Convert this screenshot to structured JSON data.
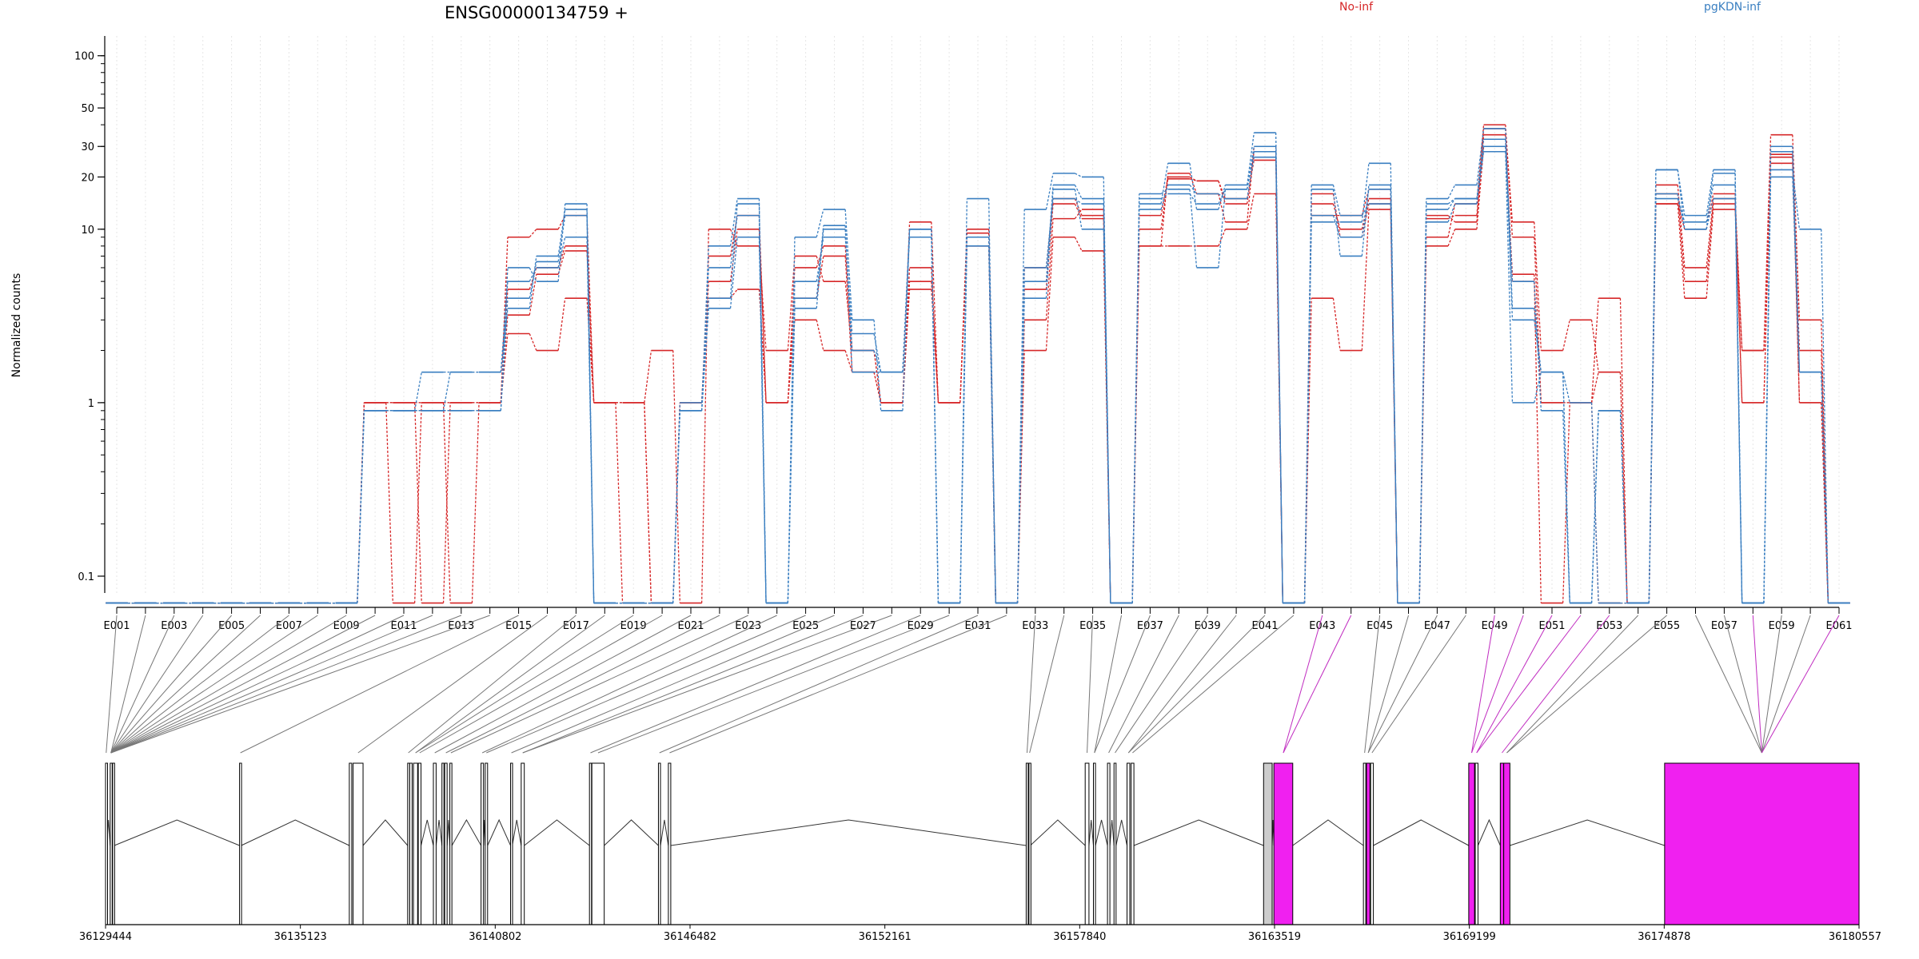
{
  "chart_data": {
    "type": "line",
    "title": "ENSG00000134759 +",
    "ylabel": "Normalized counts",
    "y_scale": "log",
    "ylim": [
      0.08,
      130
    ],
    "y_ticks": [
      0.1,
      1,
      10,
      20,
      30,
      50,
      100
    ],
    "y_tick_labels": [
      "0.1",
      "1",
      "10",
      "20",
      "30",
      "50",
      "100"
    ],
    "x_tick_labels": [
      "E001",
      "E003",
      "E005",
      "E007",
      "E009",
      "E011",
      "E013",
      "E015",
      "E017",
      "E019",
      "E021",
      "E023",
      "E025",
      "E027",
      "E029",
      "E031",
      "E033",
      "E035",
      "E037",
      "E039",
      "E041",
      "E043",
      "E045",
      "E047",
      "E049",
      "E051",
      "E053",
      "E055",
      "E057",
      "E059",
      "E061"
    ],
    "exons": [
      "E001",
      "E002",
      "E003",
      "E004",
      "E005",
      "E006",
      "E007",
      "E008",
      "E009",
      "E010",
      "E011",
      "E012",
      "E013",
      "E014",
      "E015",
      "E016",
      "E017",
      "E018",
      "E019",
      "E020",
      "E021",
      "E022",
      "E023",
      "E024",
      "E025",
      "E026",
      "E027",
      "E028",
      "E029",
      "E030",
      "E031",
      "E032",
      "E033",
      "E034",
      "E035",
      "E036",
      "E037",
      "E038",
      "E039",
      "E040",
      "E041",
      "E042",
      "E043",
      "E044",
      "E045",
      "E046",
      "E047",
      "E048",
      "E049",
      "E050",
      "E051",
      "E052",
      "E053",
      "E054",
      "E055",
      "E056",
      "E057",
      "E058",
      "E059",
      "E060",
      "E061"
    ],
    "legend": [
      {
        "name": "No-inf",
        "color": "#d62728",
        "position": "top"
      },
      {
        "name": "pgKDN-inf",
        "color": "#3a7fc1",
        "position": "top"
      }
    ],
    "series": [
      {
        "group": "No-inf",
        "color": "#d62728",
        "values": [
          0.07,
          0.07,
          0.07,
          0.07,
          0.07,
          0.07,
          0.07,
          0.07,
          0.07,
          1.0,
          1.0,
          1.0,
          1.0,
          1.0,
          3.2,
          5.5,
          7.5,
          1.0,
          0.07,
          0.07,
          1.0,
          5.0,
          10.0,
          1.0,
          4.0,
          7.0,
          1.5,
          1.0,
          5.0,
          1.0,
          9.0,
          0.07,
          4.5,
          14.0,
          11.5,
          0.07,
          10.0,
          19.5,
          19.0,
          14.0,
          28.0,
          0.07,
          14.0,
          10.0,
          15.0,
          0.07,
          11.5,
          12.0,
          35.0,
          5.0,
          1.0,
          1.0,
          1.5,
          0.07,
          16.0,
          5.0,
          14.0,
          1.0,
          26.0,
          1.0,
          0.07
        ]
      },
      {
        "group": "No-inf",
        "color": "#d62728",
        "values": [
          0.07,
          0.07,
          0.07,
          0.07,
          0.07,
          0.07,
          0.07,
          0.07,
          0.07,
          1.0,
          1.0,
          0.07,
          1.0,
          1.0,
          4.5,
          6.0,
          8.0,
          1.0,
          1.0,
          0.07,
          1.0,
          7.0,
          12.0,
          1.0,
          6.0,
          8.0,
          2.0,
          1.0,
          6.0,
          1.0,
          10.0,
          0.07,
          3.0,
          11.5,
          13.0,
          0.07,
          8.0,
          21.0,
          16.0,
          11.0,
          30.0,
          0.07,
          12.0,
          12.0,
          17.0,
          0.07,
          9.0,
          14.0,
          40.0,
          9.0,
          1.0,
          1.0,
          0.07,
          0.07,
          18.0,
          6.0,
          15.0,
          2.0,
          24.0,
          2.0,
          0.07
        ]
      },
      {
        "group": "No-inf",
        "color": "#d62728",
        "values": [
          0.07,
          0.07,
          0.07,
          0.07,
          0.07,
          0.07,
          0.07,
          0.07,
          0.07,
          1.0,
          0.07,
          1.0,
          0.07,
          1.0,
          9.0,
          10.0,
          12.0,
          1.0,
          1.0,
          2.0,
          0.07,
          10.0,
          8.0,
          2.0,
          7.0,
          5.0,
          2.0,
          1.0,
          11.0,
          1.0,
          8.0,
          0.07,
          6.0,
          15.0,
          12.0,
          0.07,
          12.0,
          20.0,
          19.0,
          15.0,
          25.0,
          0.07,
          16.0,
          9.0,
          14.0,
          0.07,
          12.0,
          11.0,
          38.0,
          11.0,
          2.0,
          3.0,
          1.5,
          0.07,
          14.0,
          10.0,
          16.0,
          1.0,
          27.0,
          1.0,
          0.07
        ]
      },
      {
        "group": "No-inf",
        "color": "#d62728",
        "values": [
          0.07,
          0.07,
          0.07,
          0.07,
          0.07,
          0.07,
          0.07,
          0.07,
          0.07,
          1.0,
          1.0,
          1.0,
          1.0,
          1.0,
          2.5,
          2.0,
          4.0,
          1.0,
          1.0,
          0.07,
          1.0,
          4.0,
          4.5,
          1.0,
          3.0,
          2.0,
          1.5,
          1.0,
          4.5,
          1.0,
          9.5,
          0.07,
          2.0,
          9.0,
          7.5,
          0.07,
          8.0,
          8.0,
          8.0,
          10.0,
          16.0,
          0.07,
          4.0,
          2.0,
          13.0,
          0.07,
          8.0,
          10.0,
          30.0,
          5.5,
          0.07,
          1.0,
          4.0,
          0.07,
          14.0,
          4.0,
          13.0,
          2.0,
          35.0,
          3.0,
          0.07
        ]
      },
      {
        "group": "pgKDN-inf",
        "color": "#3a7fc1",
        "values": [
          0.07,
          0.07,
          0.07,
          0.07,
          0.07,
          0.07,
          0.07,
          0.07,
          0.07,
          0.9,
          0.9,
          1.5,
          1.5,
          1.5,
          5.0,
          6.0,
          9.0,
          0.07,
          0.07,
          0.07,
          1.0,
          6.0,
          12.0,
          0.07,
          5.0,
          9.0,
          2.5,
          1.5,
          10.0,
          0.07,
          8.0,
          0.07,
          5.0,
          18.0,
          15.0,
          0.07,
          14.0,
          24.0,
          13.0,
          18.0,
          36.0,
          0.07,
          17.0,
          7.0,
          18.0,
          0.07,
          15.0,
          18.0,
          38.0,
          3.5,
          1.5,
          1.0,
          0.07,
          0.07,
          22.0,
          12.0,
          22.0,
          0.07,
          30.0,
          1.5,
          0.07
        ]
      },
      {
        "group": "pgKDN-inf",
        "color": "#3a7fc1",
        "values": [
          0.07,
          0.07,
          0.07,
          0.07,
          0.07,
          0.07,
          0.07,
          0.07,
          0.07,
          0.9,
          0.9,
          0.9,
          0.9,
          0.9,
          6.0,
          5.0,
          14.0,
          0.07,
          0.07,
          0.07,
          0.9,
          8.0,
          15.0,
          0.07,
          9.0,
          13.0,
          3.0,
          0.9,
          10.0,
          0.07,
          15.0,
          0.07,
          13.0,
          21.0,
          20.0,
          0.07,
          16.0,
          17.0,
          6.0,
          17.0,
          28.0,
          0.07,
          11.0,
          11.0,
          24.0,
          0.07,
          13.0,
          15.0,
          33.0,
          3.0,
          1.5,
          0.07,
          0.9,
          0.07,
          22.0,
          10.0,
          21.0,
          0.07,
          20.0,
          1.5,
          0.07
        ]
      },
      {
        "group": "pgKDN-inf",
        "color": "#3a7fc1",
        "values": [
          0.07,
          0.07,
          0.07,
          0.07,
          0.07,
          0.07,
          0.07,
          0.07,
          0.07,
          0.9,
          0.9,
          0.9,
          1.5,
          1.5,
          3.5,
          7.0,
          13.0,
          0.07,
          0.07,
          0.07,
          0.9,
          3.5,
          9.0,
          0.07,
          3.5,
          10.0,
          2.0,
          1.5,
          9.0,
          0.07,
          9.0,
          0.07,
          4.0,
          17.0,
          10.0,
          0.07,
          15.0,
          16.0,
          14.0,
          17.0,
          30.0,
          0.07,
          12.0,
          9.0,
          17.0,
          0.07,
          14.0,
          15.0,
          28.0,
          1.0,
          1.5,
          0.07,
          0.9,
          0.07,
          15.0,
          11.0,
          18.0,
          0.07,
          28.0,
          1.5,
          0.07
        ]
      },
      {
        "group": "pgKDN-inf",
        "color": "#3a7fc1",
        "values": [
          0.07,
          0.07,
          0.07,
          0.07,
          0.07,
          0.07,
          0.07,
          0.07,
          0.07,
          0.9,
          0.9,
          0.9,
          0.9,
          0.9,
          4.0,
          6.5,
          12.0,
          0.07,
          0.07,
          0.07,
          0.9,
          4.0,
          14.0,
          0.07,
          4.0,
          10.5,
          1.5,
          1.5,
          10.0,
          0.07,
          9.0,
          0.07,
          6.0,
          15.0,
          14.0,
          0.07,
          13.0,
          18.0,
          16.0,
          15.0,
          26.0,
          0.07,
          18.0,
          12.0,
          14.0,
          0.07,
          11.0,
          14.0,
          30.0,
          5.0,
          0.9,
          0.07,
          0.9,
          0.07,
          16.0,
          10.0,
          15.0,
          0.07,
          22.0,
          10.0,
          0.07
        ]
      }
    ],
    "genomic_axis": {
      "tick_labels": [
        "36129444",
        "36135123",
        "36140802",
        "36146482",
        "36152161",
        "36157840",
        "36163519",
        "36169199",
        "36174878",
        "36180557"
      ],
      "start": 36129444,
      "end": 36180557
    },
    "gene_model": {
      "exon_color": "#ffffff",
      "differential_exon_color": "#f020f0",
      "shared_exon_color": "#cccccc",
      "line_color": "#333333",
      "highlight_line_color": "#c02cc0",
      "differential_exons": [
        "E043",
        "E044",
        "E049",
        "E050",
        "E051",
        "E052",
        "E053",
        "E058",
        "E061"
      ]
    }
  }
}
